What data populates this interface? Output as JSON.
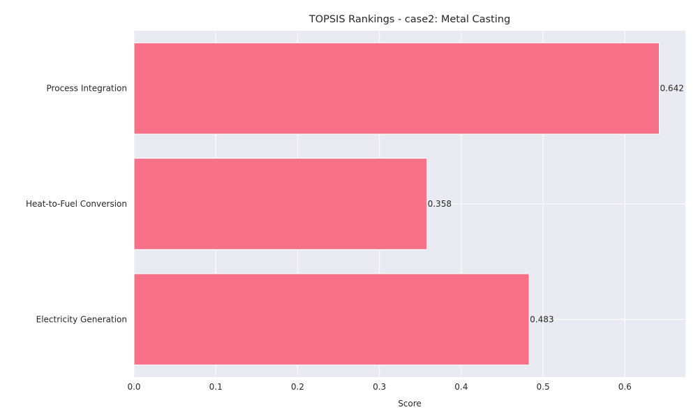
{
  "chart_data": {
    "type": "bar",
    "orientation": "horizontal",
    "title": "TOPSIS Rankings - case2: Metal Casting",
    "xlabel": "Score",
    "ylabel": "",
    "categories": [
      "Process Integration",
      "Heat-to-Fuel Conversion",
      "Electricity Generation"
    ],
    "values": [
      0.642,
      0.358,
      0.483
    ],
    "value_labels": [
      "0.642",
      "0.358",
      "0.483"
    ],
    "xlim": [
      0,
      0.674
    ],
    "xticks": [
      0.0,
      0.1,
      0.2,
      0.3,
      0.4,
      0.5,
      0.6
    ],
    "xtick_labels": [
      "0.0",
      "0.1",
      "0.2",
      "0.3",
      "0.4",
      "0.5",
      "0.6"
    ],
    "grid": true,
    "colors": {
      "bar": "#f77189",
      "plot_background": "#eaeaf2",
      "grid": "#ffffff"
    }
  }
}
